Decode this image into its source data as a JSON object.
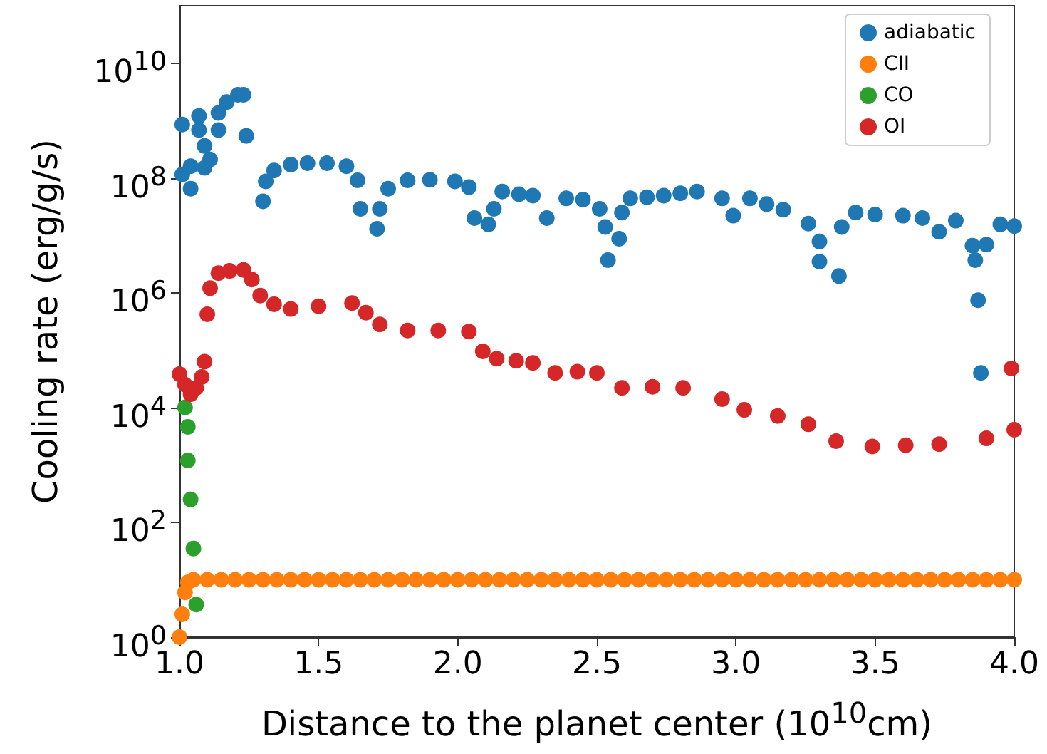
{
  "chart_data": {
    "type": "scatter",
    "xlabel": "Distance to the planet center (10$^{10}$cm)",
    "ylabel": "Cooling rate (erg/g/s)",
    "xlim": [
      1.0,
      4.0
    ],
    "xticks": [
      {
        "value": 1.0,
        "label": "1.0"
      },
      1.5,
      {
        "value": 2.0,
        "label": "2.0"
      },
      2.5,
      {
        "value": 3.0,
        "label": "3.0"
      },
      3.5,
      {
        "value": 4.0,
        "label": "4.0"
      }
    ],
    "ylim": [
      1,
      100000000000.0
    ],
    "yticks": [
      {
        "value": 1,
        "label": "10$^{0}$"
      },
      {
        "value": 100,
        "label": "10$^{2}$"
      },
      {
        "value": 10000,
        "label": "10$^{4}$"
      },
      {
        "value": 1000000,
        "label": "10$^{6}$"
      },
      {
        "value": 100000000,
        "label": "10$^{8}$"
      },
      {
        "value": 10000000000,
        "label": "10$^{10}$"
      }
    ],
    "log": "y",
    "grid": false,
    "legend": "top right",
    "marker": "circle",
    "series": [
      {
        "name": "adiabatic",
        "color": "#1f77b4",
        "x": [
          1.01,
          1.01,
          1.04,
          1.04,
          1.07,
          1.07,
          1.09,
          1.09,
          1.11,
          1.14,
          1.14,
          1.17,
          1.21,
          1.23,
          1.24,
          1.3,
          1.31,
          1.34,
          1.4,
          1.46,
          1.53,
          1.6,
          1.64,
          1.65,
          1.71,
          1.72,
          1.75,
          1.82,
          1.9,
          1.99,
          2.04,
          2.06,
          2.11,
          2.13,
          2.16,
          2.22,
          2.27,
          2.32,
          2.39,
          2.45,
          2.51,
          2.53,
          2.54,
          2.58,
          2.59,
          2.62,
          2.68,
          2.74,
          2.8,
          2.86,
          2.95,
          2.99,
          3.05,
          3.11,
          3.17,
          3.26,
          3.3,
          3.3,
          3.37,
          3.38,
          3.43,
          3.5,
          3.6,
          3.67,
          3.73,
          3.79,
          3.85,
          3.86,
          3.87,
          3.88,
          3.9,
          3.95,
          4.0
        ],
        "values": [
          850000000.0,
          115000000.0,
          65000000.0,
          160000000.0,
          1200000000.0,
          680000000.0,
          360000000.0,
          150000000.0,
          210000000.0,
          680000000.0,
          1350000000.0,
          2100000000.0,
          2800000000.0,
          2800000000.0,
          540000000.0,
          39000000.0,
          87000000.0,
          135000000.0,
          170000000.0,
          180000000.0,
          180000000.0,
          160000000.0,
          91000000.0,
          29000000.0,
          13000000.0,
          29000000.0,
          65000000.0,
          91000000.0,
          93000000.0,
          87000000.0,
          69000000.0,
          20000000.0,
          15500000.0,
          29000000.0,
          58000000.0,
          52000000.0,
          49000000.0,
          20000000.0,
          44000000.0,
          42000000.0,
          29000000.0,
          14000000.0,
          3700000.0,
          8700000.0,
          25000000.0,
          44000000.0,
          46000000.0,
          49000000.0,
          54000000.0,
          58000000.0,
          44000000.0,
          22000000.0,
          44000000.0,
          35000000.0,
          28000000.0,
          16000000.0,
          7800000.0,
          3500000.0,
          1950000.0,
          14000000.0,
          25000000.0,
          23000000.0,
          22000000.0,
          20000000.0,
          11500000.0,
          18000000.0,
          6600000.0,
          3700000.0,
          740000.0,
          40000.0,
          6900000.0,
          15500000.0,
          14500000.0
        ]
      },
      {
        "name": "CII",
        "color": "#ff7f0e",
        "x": [
          1.0,
          1.01,
          1.02,
          1.03,
          1.05,
          1.1,
          1.15,
          1.2,
          1.25,
          1.3,
          1.35,
          1.4,
          1.45,
          1.5,
          1.55,
          1.6,
          1.65,
          1.7,
          1.75,
          1.8,
          1.85,
          1.9,
          1.95,
          2.0,
          2.05,
          2.1,
          2.15,
          2.2,
          2.25,
          2.3,
          2.35,
          2.4,
          2.45,
          2.5,
          2.55,
          2.6,
          2.65,
          2.7,
          2.75,
          2.8,
          2.85,
          2.9,
          2.95,
          3.0,
          3.05,
          3.1,
          3.15,
          3.2,
          3.25,
          3.3,
          3.35,
          3.4,
          3.45,
          3.5,
          3.55,
          3.6,
          3.65,
          3.7,
          3.75,
          3.8,
          3.85,
          3.9,
          3.95,
          4.0
        ],
        "values": [
          1.0,
          2.5,
          6,
          9,
          10,
          10,
          10,
          10,
          10,
          10,
          10,
          10,
          10,
          10,
          10,
          10,
          10,
          10,
          10,
          10,
          10,
          10,
          10,
          10,
          10,
          10,
          10,
          10,
          10,
          10,
          10,
          10,
          10,
          10,
          10,
          10,
          10,
          10,
          10,
          10,
          10,
          10,
          10,
          10,
          10,
          10,
          10,
          10,
          10,
          10,
          10,
          10,
          10,
          10,
          10,
          10,
          10,
          10,
          10,
          10,
          10,
          10,
          10,
          10
        ]
      },
      {
        "name": "CO",
        "color": "#2ca02c",
        "x": [
          1.02,
          1.03,
          1.03,
          1.04,
          1.05,
          1.06
        ],
        "values": [
          10000.0,
          4600.0,
          1200.0,
          250.0,
          35,
          3.7
        ]
      },
      {
        "name": "OI",
        "color": "#d62728",
        "x": [
          1.0,
          1.02,
          1.04,
          1.06,
          1.08,
          1.09,
          1.1,
          1.11,
          1.14,
          1.18,
          1.23,
          1.26,
          1.29,
          1.34,
          1.4,
          1.5,
          1.62,
          1.67,
          1.72,
          1.82,
          1.93,
          2.04,
          2.09,
          2.14,
          2.21,
          2.27,
          2.35,
          2.43,
          2.5,
          2.59,
          2.7,
          2.81,
          2.95,
          3.03,
          3.15,
          3.26,
          3.36,
          3.49,
          3.61,
          3.73,
          3.9,
          4.0,
          3.99
        ],
        "values": [
          38000.0,
          25000.0,
          17000.0,
          22000.0,
          34000.0,
          63000.0,
          420000.0,
          1200000.0,
          2200000.0,
          2400000.0,
          2500000.0,
          1700000.0,
          890000.0,
          630000.0,
          520000.0,
          580000.0,
          660000.0,
          450000.0,
          280000.0,
          220000.0,
          220000.0,
          210000.0,
          95000.0,
          71000.0,
          65000.0,
          60000.0,
          40000.0,
          42000.0,
          40000.0,
          22000.0,
          23000.0,
          22000.0,
          14000.0,
          9100.0,
          7100.0,
          5100.0,
          2600.0,
          2100.0,
          2200.0,
          2300.0,
          2900.0,
          4100.0,
          48000.0
        ]
      }
    ]
  }
}
